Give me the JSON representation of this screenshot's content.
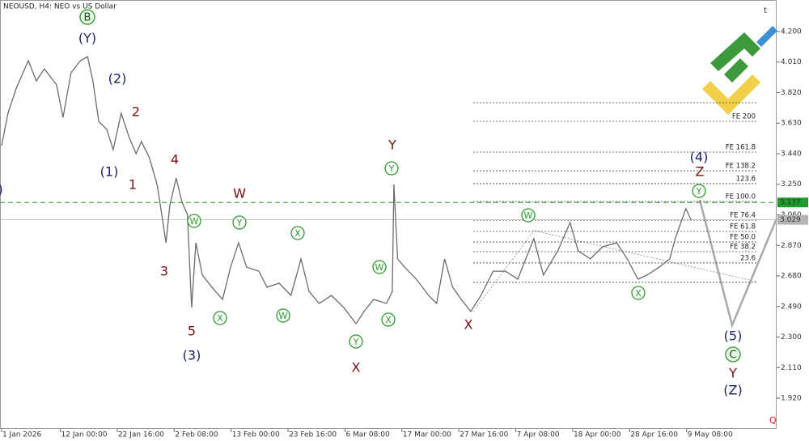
{
  "chart_data": {
    "type": "line",
    "title": "NEOUSD, H4:  NEO vs US Dollar",
    "xlim": [
      -0.3,
      145.2
    ],
    "ylim": [
      1.729,
      4.396
    ],
    "xticks": [
      {
        "value": 0,
        "label": "1 Jan 2026"
      },
      {
        "value": 11,
        "label": "12 Jan 00:00"
      },
      {
        "value": 21.667,
        "label": "22 Jan 16:00"
      },
      {
        "value": 32.333,
        "label": "2 Feb 08:00"
      },
      {
        "value": 43,
        "label": "13 Feb 00:00"
      },
      {
        "value": 53.667,
        "label": "23 Feb 16:00"
      },
      {
        "value": 64.333,
        "label": "6 Mar 08:00"
      },
      {
        "value": 75,
        "label": "17 Mar 00:00"
      },
      {
        "value": 85.667,
        "label": "27 Mar 16:00"
      },
      {
        "value": 96.333,
        "label": "7 Apr 08:00"
      },
      {
        "value": 107,
        "label": "18 Apr 00:00"
      },
      {
        "value": 117.667,
        "label": "28 Apr 16:00"
      },
      {
        "value": 128.333,
        "label": "9 May 08:00"
      }
    ],
    "yticks": [
      {
        "value": 4.2,
        "label": "4.200"
      },
      {
        "value": 4.01,
        "label": "4.010"
      },
      {
        "value": 3.82,
        "label": "3.820"
      },
      {
        "value": 3.63,
        "label": "3.630"
      },
      {
        "value": 3.44,
        "label": "3.440"
      },
      {
        "value": 3.25,
        "label": "3.250"
      },
      {
        "value": 3.06,
        "label": "3.060"
      },
      {
        "value": 2.87,
        "label": "2.870"
      },
      {
        "value": 2.68,
        "label": "2.680"
      },
      {
        "value": 2.49,
        "label": "2.490"
      },
      {
        "value": 2.3,
        "label": "2.300"
      },
      {
        "value": 2.11,
        "label": "2.110"
      },
      {
        "value": 1.92,
        "label": "1.920"
      }
    ],
    "series": [
      {
        "name": "NEOUSD",
        "color": "#6b6b6b",
        "x": [
          0,
          1.2,
          2.7,
          5.0,
          6.5,
          8.0,
          10.3,
          11.5,
          13.0,
          14.8,
          16.1,
          17.1,
          18.2,
          19.7,
          20.9,
          22.4,
          23.9,
          25.2,
          26.2,
          27.7,
          29.2,
          30.8,
          31.5,
          32.7,
          33.8,
          34.8,
          35.6,
          36.4,
          37.6,
          39.4,
          41.4,
          42.9,
          44.4,
          45.9,
          48.2,
          49.7,
          52.0,
          54.2,
          56.1,
          57.6,
          59.5,
          61.8,
          64.1,
          66.4,
          67.9,
          69.7,
          72.1,
          73.2,
          73.5,
          74.2,
          75.5,
          77.7,
          80.0,
          81.5,
          83.0,
          84.5,
          86.1,
          87.9,
          89.8,
          92.1,
          94.4,
          96.7,
          99.7,
          101.5,
          104.2,
          106.5,
          108.0,
          110.3,
          112.6,
          115.2,
          117.2,
          119.2,
          120.9,
          123.2,
          125.2,
          126.2,
          127.0,
          128.2,
          129.2
        ],
        "values": [
          3.49,
          3.692,
          3.843,
          4.019,
          3.893,
          3.968,
          3.868,
          3.666,
          3.943,
          4.019,
          4.044,
          3.893,
          3.641,
          3.591,
          3.465,
          3.692,
          3.541,
          3.44,
          3.516,
          3.415,
          3.239,
          2.886,
          3.113,
          3.289,
          3.138,
          3.063,
          2.484,
          2.886,
          2.685,
          2.61,
          2.534,
          2.735,
          2.886,
          2.735,
          2.71,
          2.61,
          2.635,
          2.559,
          2.786,
          2.584,
          2.509,
          2.559,
          2.484,
          2.383,
          2.459,
          2.534,
          2.509,
          2.584,
          3.249,
          2.786,
          2.735,
          2.66,
          2.559,
          2.509,
          2.786,
          2.61,
          2.534,
          2.459,
          2.559,
          2.71,
          2.71,
          2.66,
          2.912,
          2.685,
          2.836,
          3.012,
          2.836,
          2.786,
          2.861,
          2.886,
          2.786,
          2.66,
          2.685,
          2.735,
          2.786,
          2.912,
          2.987,
          3.098,
          3.027
        ]
      }
    ],
    "fib_levels": [
      {
        "value": 3.757
      },
      {
        "value": 3.641,
        "label": "FE 200"
      },
      {
        "value": 3.45,
        "label": "FE 161.8"
      },
      {
        "value": 3.334,
        "label": "FE 138.2"
      },
      {
        "value": 3.254,
        "label": "123.6"
      },
      {
        "value": 3.143,
        "label": "FE 100.0"
      },
      {
        "value": 3.027,
        "label": "FE 76.4"
      },
      {
        "value": 2.957,
        "label": "FE 61.8"
      },
      {
        "value": 2.891,
        "label": "FE 50.0"
      },
      {
        "value": 2.831,
        "label": "FE 38.2"
      },
      {
        "value": 2.761,
        "label": "23.6"
      },
      {
        "value": 2.64
      }
    ],
    "price_lines": [
      {
        "value": 3.137,
        "label": "3.137",
        "color": "#1f9a2a"
      },
      {
        "value": 3.029,
        "label": "3.029",
        "color": "#b4b4b4"
      }
    ],
    "annotations": [
      "B",
      "(Y)",
      "(2)",
      "2",
      "(1)",
      "1",
      "4",
      "3",
      "5",
      "(3)",
      "W",
      "W",
      "Y",
      "X",
      "W",
      "X",
      "Y",
      "X",
      "W",
      "X",
      "Y",
      "Y",
      "X",
      "W",
      "X",
      "(4)",
      "Z",
      "Y",
      "(5)",
      "C",
      "Y",
      "(Z)",
      "(X)"
    ]
  }
}
